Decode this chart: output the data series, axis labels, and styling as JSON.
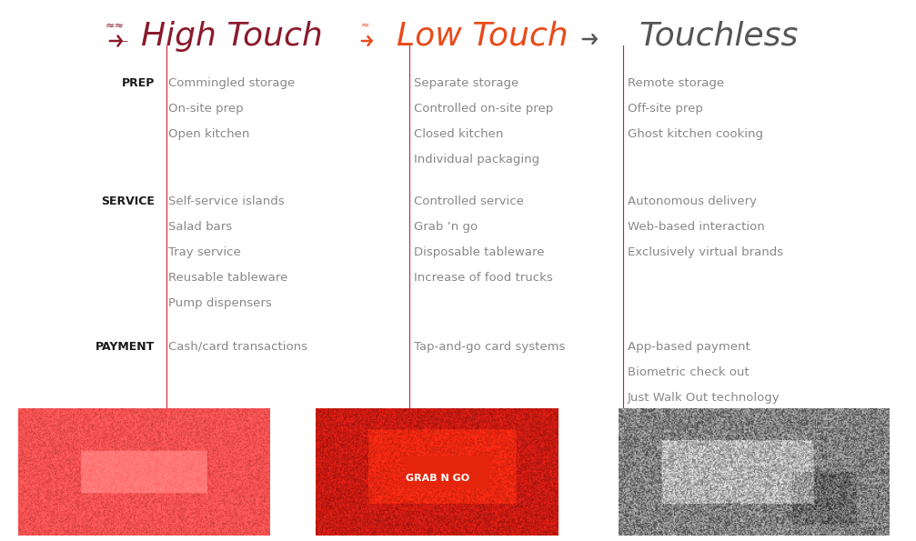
{
  "title_high_touch": "High Touch",
  "title_low_touch": "Low Touch",
  "title_touchless": "Touchless",
  "color_high_touch": "#8B1A2B",
  "color_low_touch": "#E84A1A",
  "color_touchless": "#555555",
  "color_text": "#888888",
  "color_divider": "#CC2233",
  "color_label_dark": "#1a1a1a",
  "high_touch_prep": [
    "Commingled storage",
    "On-site prep",
    "Open kitchen"
  ],
  "high_touch_service": [
    "Self-service islands",
    "Salad bars",
    "Tray service",
    "Reusable tableware",
    "Pump dispensers"
  ],
  "high_touch_payment": [
    "Cash/card transactions"
  ],
  "low_touch_prep": [
    "Separate storage",
    "Controlled on-site prep",
    "Closed kitchen",
    "Individual packaging"
  ],
  "low_touch_service": [
    "Controlled service",
    "Grab ’n go",
    "Disposable tableware",
    "Increase of food trucks"
  ],
  "low_touch_payment": [
    "Tap-and-go card systems"
  ],
  "touchless_prep": [
    "Remote storage",
    "Off-site prep",
    "Ghost kitchen cooking"
  ],
  "touchless_service": [
    "Autonomous delivery",
    "Web-based interaction",
    "Exclusively virtual brands"
  ],
  "touchless_payment": [
    "App-based payment",
    "Biometric check out",
    "Just Walk Out technology"
  ],
  "bg_color": "#FFFFFF",
  "img1_color": "#E87585",
  "img2_color": "#CC3030",
  "img3_color": "#555555"
}
